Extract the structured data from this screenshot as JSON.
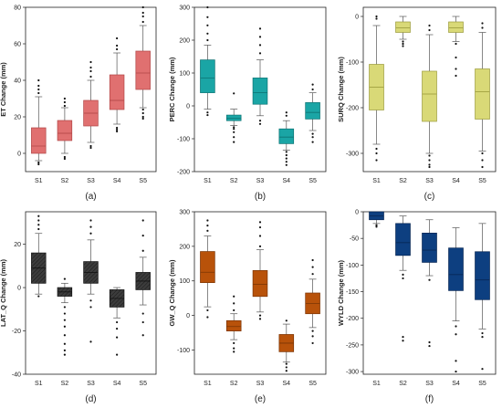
{
  "chart_data": [
    {
      "type": "box",
      "panel_label": "(a)",
      "ylabel": "ET Change (mm)",
      "categories": [
        "S1",
        "S2",
        "S3",
        "S4",
        "S5"
      ],
      "ylim": [
        -10,
        80
      ],
      "yticks": [
        0,
        20,
        40,
        60,
        80
      ],
      "color": "#e07070",
      "edge": "#b04545",
      "pattern": "none",
      "boxes": [
        {
          "q1": 0,
          "median": 4,
          "q3": 14,
          "wlow": -4,
          "whigh": 31,
          "outliers": [
            -6,
            -5,
            33,
            35,
            37,
            40
          ]
        },
        {
          "q1": 7,
          "median": 11,
          "q3": 18,
          "wlow": 0,
          "whigh": 25,
          "outliers": [
            -3,
            -2,
            26,
            28,
            30
          ]
        },
        {
          "q1": 15,
          "median": 22,
          "q3": 29,
          "wlow": 6,
          "whigh": 40,
          "outliers": [
            3,
            4,
            42,
            45,
            47,
            50
          ]
        },
        {
          "q1": 24,
          "median": 29,
          "q3": 43,
          "wlow": 16,
          "whigh": 55,
          "outliers": [
            12,
            13,
            14,
            57,
            59,
            63
          ]
        },
        {
          "q1": 35,
          "median": 44,
          "q3": 56,
          "wlow": 25,
          "whigh": 70,
          "outliers": [
            19,
            20,
            22,
            24,
            72,
            75,
            77,
            80
          ]
        }
      ]
    },
    {
      "type": "box",
      "panel_label": "(b)",
      "ylabel": "PERC Change (mm)",
      "categories": [
        "S1",
        "S2",
        "S3",
        "S4",
        "S5"
      ],
      "ylim": [
        -200,
        300
      ],
      "yticks": [
        -200,
        -100,
        0,
        100,
        200,
        300
      ],
      "color": "#1aa5a5",
      "edge": "#0c7373",
      "pattern": "none",
      "boxes": [
        {
          "q1": 40,
          "median": 85,
          "q3": 140,
          "wlow": -10,
          "whigh": 185,
          "outliers": [
            -28,
            -20,
            200,
            220,
            245,
            270,
            300
          ]
        },
        {
          "q1": -45,
          "median": -38,
          "q3": -28,
          "wlow": -60,
          "whigh": -10,
          "outliers": [
            -65,
            -70,
            -80,
            -95,
            -110,
            38
          ]
        },
        {
          "q1": 5,
          "median": 40,
          "q3": 85,
          "wlow": -30,
          "whigh": 140,
          "outliers": [
            -45,
            -55,
            160,
            185,
            210,
            235
          ]
        },
        {
          "q1": -115,
          "median": -95,
          "q3": -70,
          "wlow": -135,
          "whigh": -45,
          "outliers": [
            -140,
            -150,
            -160,
            -170,
            -180,
            -30,
            -20
          ]
        },
        {
          "q1": -40,
          "median": -20,
          "q3": 10,
          "wlow": -75,
          "whigh": 40,
          "outliers": [
            -85,
            -95,
            -110,
            50,
            65
          ]
        }
      ]
    },
    {
      "type": "box",
      "panel_label": "(c)",
      "ylabel": "SURQ Change (mm)",
      "categories": [
        "S1",
        "S2",
        "S3",
        "S4",
        "S5"
      ],
      "ylim": [
        -340,
        20
      ],
      "yticks": [
        -300,
        -200,
        -100,
        0
      ],
      "color": "#d9d977",
      "edge": "#9a9a3a",
      "pattern": "none",
      "boxes": [
        {
          "q1": -205,
          "median": -155,
          "q3": -105,
          "wlow": -280,
          "whigh": -20,
          "outliers": [
            -290,
            -300,
            -315,
            -5,
            0
          ]
        },
        {
          "q1": -35,
          "median": -25,
          "q3": -12,
          "wlow": -50,
          "whigh": 0,
          "outliers": [
            -55,
            -60,
            -65
          ]
        },
        {
          "q1": -230,
          "median": -170,
          "q3": -120,
          "wlow": -300,
          "whigh": -40,
          "outliers": [
            -305,
            -315,
            -325,
            -330,
            -30,
            -20
          ]
        },
        {
          "q1": -35,
          "median": -25,
          "q3": -12,
          "wlow": -55,
          "whigh": 0,
          "outliers": [
            -60,
            -90,
            -115,
            -130
          ]
        },
        {
          "q1": -225,
          "median": -165,
          "q3": -115,
          "wlow": -295,
          "whigh": -35,
          "outliers": [
            -300,
            -315,
            -330,
            -25,
            -15
          ]
        }
      ]
    },
    {
      "type": "box",
      "panel_label": "(d)",
      "ylabel": "LAT_Q Change (mm)",
      "categories": [
        "S1",
        "S2",
        "S3",
        "S4",
        "S5"
      ],
      "ylim": [
        -40,
        35
      ],
      "yticks": [
        -40,
        -20,
        0,
        20
      ],
      "color": "#3c3c3c",
      "edge": "#111111",
      "pattern": "hatch",
      "boxes": [
        {
          "q1": 2,
          "median": 9,
          "q3": 16,
          "wlow": -3,
          "whigh": 25,
          "outliers": [
            -4,
            27,
            29,
            31,
            33
          ]
        },
        {
          "q1": -4,
          "median": -2,
          "q3": 0,
          "wlow": -7,
          "whigh": 2,
          "outliers": [
            -9,
            -12,
            -15,
            -18,
            -22,
            -26,
            -29,
            -31,
            4
          ]
        },
        {
          "q1": 2,
          "median": 7,
          "q3": 12,
          "wlow": -3,
          "whigh": 22,
          "outliers": [
            -6,
            -9,
            -25,
            25,
            28,
            31
          ]
        },
        {
          "q1": -9,
          "median": -5,
          "q3": -1,
          "wlow": -14,
          "whigh": 0,
          "outliers": [
            -16,
            -19,
            -23,
            -31
          ]
        },
        {
          "q1": -1,
          "median": 3,
          "q3": 7,
          "wlow": -8,
          "whigh": 14,
          "outliers": [
            -12,
            -16,
            -22,
            17,
            24,
            31
          ]
        }
      ]
    },
    {
      "type": "box",
      "panel_label": "(e)",
      "ylabel": "GW_Q Change (mm)",
      "categories": [
        "S1",
        "S2",
        "S3",
        "S4",
        "S5"
      ],
      "ylim": [
        -170,
        300
      ],
      "yticks": [
        -100,
        0,
        100,
        200,
        300
      ],
      "color": "#b8520a",
      "edge": "#7a3404",
      "pattern": "none",
      "boxes": [
        {
          "q1": 95,
          "median": 125,
          "q3": 185,
          "wlow": 25,
          "whigh": 230,
          "outliers": [
            -5,
            15,
            245,
            260,
            275
          ]
        },
        {
          "q1": -45,
          "median": -32,
          "q3": -15,
          "wlow": -70,
          "whigh": 5,
          "outliers": [
            -80,
            -95,
            -105,
            15,
            35,
            55
          ]
        },
        {
          "q1": 55,
          "median": 90,
          "q3": 130,
          "wlow": 10,
          "whigh": 190,
          "outliers": [
            -10,
            0,
            200,
            230,
            255,
            270
          ]
        },
        {
          "q1": -105,
          "median": -80,
          "q3": -55,
          "wlow": -135,
          "whigh": -25,
          "outliers": [
            -140,
            -150,
            -160,
            -15
          ]
        },
        {
          "q1": 5,
          "median": 35,
          "q3": 65,
          "wlow": -35,
          "whigh": 105,
          "outliers": [
            -45,
            -60,
            -80,
            120,
            140,
            160
          ]
        }
      ]
    },
    {
      "type": "box",
      "panel_label": "(f)",
      "ylabel": "WYLD Change (mm)",
      "categories": [
        "S1",
        "S2",
        "S3",
        "S4",
        "S5"
      ],
      "ylim": [
        -305,
        0
      ],
      "yticks": [
        -300,
        -250,
        -200,
        -150,
        -100,
        -50,
        0
      ],
      "color": "#0d3f80",
      "edge": "#062552",
      "pattern": "none",
      "boxes": [
        {
          "q1": -15,
          "median": -8,
          "q3": 0,
          "wlow": -22,
          "whigh": 0,
          "outliers": [
            -25,
            -28
          ]
        },
        {
          "q1": -82,
          "median": -58,
          "q3": -22,
          "wlow": -110,
          "whigh": -8,
          "outliers": [
            -118,
            -125,
            -235,
            -242
          ]
        },
        {
          "q1": -95,
          "median": -72,
          "q3": -40,
          "wlow": -120,
          "whigh": -15,
          "outliers": [
            -128,
            -245,
            -252
          ]
        },
        {
          "q1": -148,
          "median": -118,
          "q3": -68,
          "wlow": -205,
          "whigh": -30,
          "outliers": [
            -215,
            -230,
            -280,
            -300
          ]
        },
        {
          "q1": -165,
          "median": -128,
          "q3": -75,
          "wlow": -220,
          "whigh": -22,
          "outliers": [
            -228,
            -235,
            -295
          ]
        }
      ]
    }
  ]
}
